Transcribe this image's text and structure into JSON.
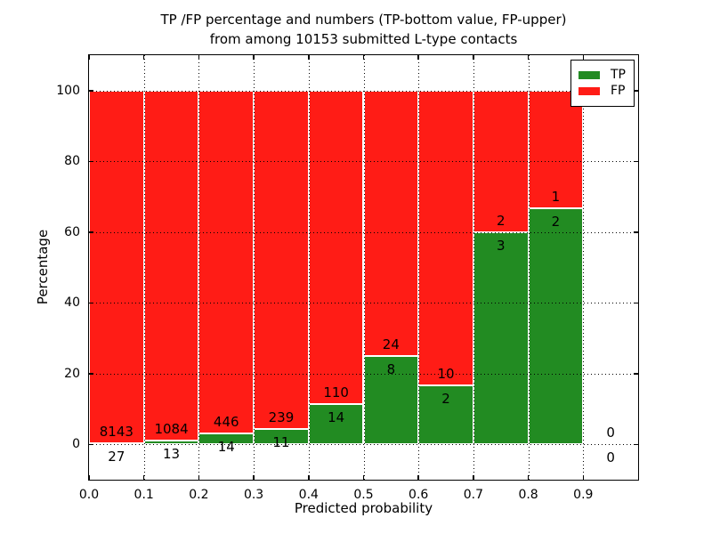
{
  "figure": {
    "bg": "#ffffff",
    "title_line1": "TP /FP percentage and numbers (TP-bottom value, FP-upper)",
    "title_line2": "from among 10153 submitted L-type contacts",
    "xlabel": "Predicted probability",
    "ylabel": "Percentage"
  },
  "legend": {
    "items": [
      {
        "label": "TP",
        "color": "#228b22"
      },
      {
        "label": "FP",
        "color": "#ff1c16"
      }
    ]
  },
  "chart_data": {
    "type": "bar",
    "variant": "stacked-percentage",
    "title": "TP /FP percentage and numbers (TP-bottom value, FP-upper) from among 10153 submitted L-type contacts",
    "xlabel": "Predicted probability",
    "ylabel": "Percentage",
    "total_submitted": 10153,
    "xlim": [
      0.0,
      1.0
    ],
    "ylim": [
      -10,
      110
    ],
    "x_ticks": [
      0.0,
      0.1,
      0.2,
      0.3,
      0.4,
      0.5,
      0.6,
      0.7,
      0.8,
      0.9
    ],
    "x_tick_labels": [
      "0.0",
      "0.1",
      "0.2",
      "0.3",
      "0.4",
      "0.5",
      "0.6",
      "0.7",
      "0.8",
      "0.9"
    ],
    "y_ticks": [
      0,
      20,
      40,
      60,
      80,
      100
    ],
    "y_tick_labels": [
      "0",
      "20",
      "40",
      "60",
      "80",
      "100"
    ],
    "grid": "dotted",
    "grid_above_bars": true,
    "legend_position": "upper-right",
    "series": [
      {
        "name": "TP",
        "color": "#228b22"
      },
      {
        "name": "FP",
        "color": "#ff1c16"
      }
    ],
    "bins": [
      {
        "range": [
          0.0,
          0.1
        ],
        "tp": 27,
        "fp": 8143,
        "tp_pct": 0.33
      },
      {
        "range": [
          0.1,
          0.2
        ],
        "tp": 13,
        "fp": 1084,
        "tp_pct": 1.19
      },
      {
        "range": [
          0.2,
          0.3
        ],
        "tp": 14,
        "fp": 446,
        "tp_pct": 3.04
      },
      {
        "range": [
          0.3,
          0.4
        ],
        "tp": 11,
        "fp": 239,
        "tp_pct": 4.4
      },
      {
        "range": [
          0.4,
          0.5
        ],
        "tp": 14,
        "fp": 110,
        "tp_pct": 11.29
      },
      {
        "range": [
          0.5,
          0.6
        ],
        "tp": 8,
        "fp": 24,
        "tp_pct": 25.0
      },
      {
        "range": [
          0.6,
          0.7
        ],
        "tp": 2,
        "fp": 10,
        "tp_pct": 16.67
      },
      {
        "range": [
          0.7,
          0.8
        ],
        "tp": 3,
        "fp": 2,
        "tp_pct": 60.0
      },
      {
        "range": [
          0.8,
          0.9
        ],
        "tp": 2,
        "fp": 1,
        "tp_pct": 66.67
      },
      {
        "range": [
          0.9,
          1.0
        ],
        "tp": 0,
        "fp": 0,
        "tp_pct": 0
      }
    ]
  }
}
